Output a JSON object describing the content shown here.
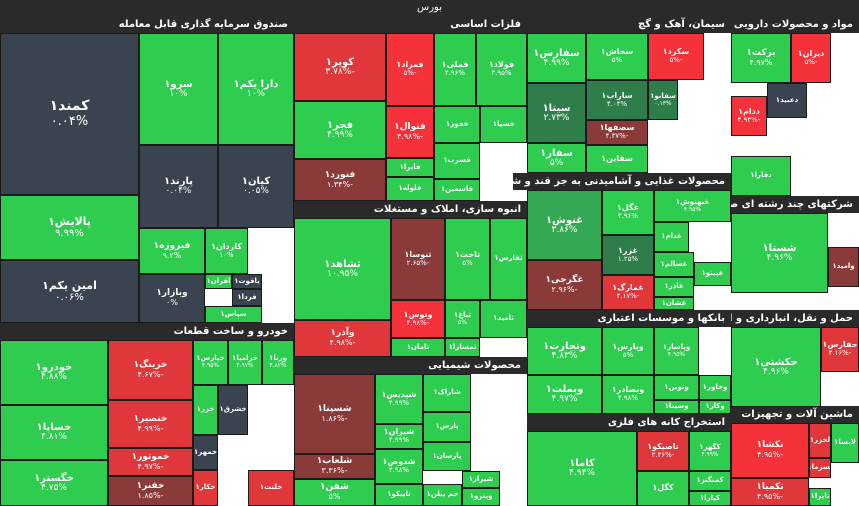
{
  "title": "بورس",
  "colors": {
    "up_strong": "#2ecc4f",
    "up_mid": "#35a853",
    "up_dark": "#2f7d4a",
    "neutral": "#3a4450",
    "down_mid": "#8b3a3a",
    "down_strong": "#e0373b",
    "down_bright": "#f5313a",
    "header": "#2a2a2a"
  },
  "chart_data": {
    "type": "heatmap",
    "title": "بورس",
    "sectors": [
      {
        "name": "صندوق سرمایه گذاری قابل معامله"
      },
      {
        "name": "خودرو و ساخت قطعات"
      },
      {
        "name": "فلزات اساسی"
      },
      {
        "name": "انبوه سازی، املاک و مستغلات"
      },
      {
        "name": "محصولات شیمیایی"
      },
      {
        "name": "سیمان، آهک و گچ"
      },
      {
        "name": "محصولات غذایی و آشامیدنی به جز قند و شکر"
      },
      {
        "name": "بانکها و موسسات اعتباری"
      },
      {
        "name": "استخراج کانه های فلزی"
      },
      {
        "name": "مواد و محصولات دارویی"
      },
      {
        "name": "شرکتهای چند رشته ای صنعتی"
      },
      {
        "name": "حمل و نقل، انبارداری و ارتباطات"
      },
      {
        "name": "ماشین آلات و تجهیزات"
      }
    ],
    "tiles": [
      {
        "symbol": "کمند۱",
        "change": "۰.۰۴%",
        "color": "neutral"
      },
      {
        "symbol": "دارا یکم۱",
        "change": "۱۰%",
        "color": "up_strong"
      },
      {
        "symbol": "سرو۱",
        "change": "۱۰%",
        "color": "up_strong"
      },
      {
        "symbol": "پالایش۱",
        "change": "۹.۹۹%",
        "color": "up_strong"
      },
      {
        "symbol": "کیان۱",
        "change": "۰.۰۵%",
        "color": "neutral"
      },
      {
        "symbol": "پارند۱",
        "change": "۰.۰۴%",
        "color": "neutral"
      },
      {
        "symbol": "امین یکم۱",
        "change": "۰.۰۶%",
        "color": "neutral"
      },
      {
        "symbol": "فیروزه۱",
        "change": "۹.۲%",
        "color": "up_strong"
      },
      {
        "symbol": "کاردان۱",
        "change": "۱۰%",
        "color": "up_strong"
      },
      {
        "symbol": "وبازار۱",
        "change": "۰%",
        "color": "neutral"
      },
      {
        "symbol": "اقران۱",
        "change": "",
        "color": "up_strong"
      },
      {
        "symbol": "یاقوت۱",
        "change": "",
        "color": "neutral"
      },
      {
        "symbol": "فردا۱",
        "change": "",
        "color": "neutral"
      },
      {
        "symbol": "سپاس۱",
        "change": "",
        "color": "up_strong"
      },
      {
        "symbol": "خودرو۱",
        "change": "۴.۸۸%",
        "color": "up_strong"
      },
      {
        "symbol": "خساپا۱",
        "change": "۴.۸۱%",
        "color": "up_strong"
      },
      {
        "symbol": "خگستر۱",
        "change": "۴.۷۵%",
        "color": "up_strong"
      },
      {
        "symbol": "خرینگ۱",
        "change": "-۴.۶۷%",
        "color": "down_strong"
      },
      {
        "symbol": "خنصیر۱",
        "change": "-۴.۹۹%",
        "color": "down_strong"
      },
      {
        "symbol": "خموتور۱",
        "change": "-۴.۹۷%",
        "color": "down_strong"
      },
      {
        "symbol": "خفنر۱",
        "change": "-۱.۸۵%",
        "color": "down_mid"
      },
      {
        "symbol": "خپارس۱",
        "change": "۴.۹۵%",
        "color": "up_strong"
      },
      {
        "symbol": "خزامیا۱",
        "change": "۴.۹۷%",
        "color": "up_strong"
      },
      {
        "symbol": "ورنا۱",
        "change": "۴.۸۲%",
        "color": "up_strong"
      },
      {
        "symbol": "خزر۱",
        "change": "",
        "color": "up_strong"
      },
      {
        "symbol": "خشرق۱",
        "change": "",
        "color": "neutral"
      },
      {
        "symbol": "خمهر۱",
        "change": "",
        "color": "neutral"
      },
      {
        "symbol": "خکار۱",
        "change": "",
        "color": "down_strong"
      },
      {
        "symbol": "خلنت۱",
        "change": "",
        "color": "down_strong"
      },
      {
        "symbol": "کویر۱",
        "change": "-۳.۷۸%",
        "color": "down_strong"
      },
      {
        "symbol": "فمراد۱",
        "change": "-۵%",
        "color": "down_bright"
      },
      {
        "symbol": "فملی۱",
        "change": "۴.۹۶%",
        "color": "up_strong"
      },
      {
        "symbol": "فولاد۱",
        "change": "۴.۹۵%",
        "color": "up_strong"
      },
      {
        "symbol": "فجر۱",
        "change": "۴.۹۹%",
        "color": "up_strong"
      },
      {
        "symbol": "فنوال۱",
        "change": "-۴.۹۸%",
        "color": "down_bright"
      },
      {
        "symbol": "فخوز۱",
        "change": "",
        "color": "up_strong"
      },
      {
        "symbol": "فسپا۱",
        "change": "",
        "color": "up_strong"
      },
      {
        "symbol": "فنورد۱",
        "change": "-۱.۳۴%",
        "color": "down_mid"
      },
      {
        "symbol": "فایرا۱",
        "change": "",
        "color": "up_strong"
      },
      {
        "symbol": "فسرب۱",
        "change": "",
        "color": "up_strong"
      },
      {
        "symbol": "فلوله۱",
        "change": "",
        "color": "up_strong"
      },
      {
        "symbol": "فاسمین۱",
        "change": "",
        "color": "up_strong"
      },
      {
        "symbol": "ثشاهد۱",
        "change": "۱۰.۹۵%",
        "color": "up_strong"
      },
      {
        "symbol": "ثنوسا۱",
        "change": "-۲.۶۵%",
        "color": "down_mid"
      },
      {
        "symbol": "ثاخت۱",
        "change": "۵%",
        "color": "up_strong"
      },
      {
        "symbol": "ثفارس۱",
        "change": "",
        "color": "up_strong"
      },
      {
        "symbol": "وآذر۱",
        "change": "-۴.۹۸%",
        "color": "down_strong"
      },
      {
        "symbol": "وتوس۱",
        "change": "-۴.۹۸%",
        "color": "down_bright"
      },
      {
        "symbol": "ثباغ۱",
        "change": "۵%",
        "color": "up_strong"
      },
      {
        "symbol": "ثامید۱",
        "change": "",
        "color": "up_strong"
      },
      {
        "symbol": "ثمسازا۱",
        "change": "",
        "color": "up_strong"
      },
      {
        "symbol": "ثامان۱",
        "change": "",
        "color": "up_strong"
      },
      {
        "symbol": "شسپنا۱",
        "change": "-۱.۸۶%",
        "color": "down_mid"
      },
      {
        "symbol": "شپدیس۱",
        "change": "۴.۹۹%",
        "color": "up_strong"
      },
      {
        "symbol": "شیران۱",
        "change": "۴.۹۹%",
        "color": "up_strong"
      },
      {
        "symbol": "شاراک۱",
        "change": "",
        "color": "up_strong"
      },
      {
        "symbol": "شلعاب۱",
        "change": "-۳.۳۶%",
        "color": "down_mid"
      },
      {
        "symbol": "شدوص۱",
        "change": "۴.۹۸%",
        "color": "up_strong"
      },
      {
        "symbol": "پارس۱",
        "change": "",
        "color": "up_strong"
      },
      {
        "symbol": "شفن۱",
        "change": "۵%",
        "color": "up_strong"
      },
      {
        "symbol": "تاپیکو۱",
        "change": "",
        "color": "up_strong"
      },
      {
        "symbol": "پارسان۱",
        "change": "",
        "color": "up_strong"
      },
      {
        "symbol": "شیراز۱",
        "change": "",
        "color": "up_strong"
      },
      {
        "symbol": "جم پیلن۱",
        "change": "",
        "color": "up_strong"
      },
      {
        "symbol": "وپترو۱",
        "change": "",
        "color": "up_strong"
      },
      {
        "symbol": "سفارس۱",
        "change": "۴.۹۹%",
        "color": "up_strong"
      },
      {
        "symbol": "سخاش۱",
        "change": "۵%",
        "color": "up_strong"
      },
      {
        "symbol": "سکرد۱",
        "change": "-۵%",
        "color": "down_bright"
      },
      {
        "symbol": "سیتا۱",
        "change": "۲.۷۳%",
        "color": "up_dark"
      },
      {
        "symbol": "ساراب۱",
        "change": "۴.۰۴%",
        "color": "up_dark"
      },
      {
        "symbol": "سفانو۱",
        "change": "۰.۱۳%",
        "color": "up_dark"
      },
      {
        "symbol": "سصفها۱",
        "change": "-۴.۳۷%",
        "color": "down_mid"
      },
      {
        "symbol": "سفار۱",
        "change": "۵%",
        "color": "up_strong"
      },
      {
        "symbol": "سفاین۱",
        "change": "",
        "color": "up_strong"
      },
      {
        "symbol": "غنوش۱",
        "change": "۳.۸۶%",
        "color": "up_mid"
      },
      {
        "symbol": "غگل۱",
        "change": "۴.۹۶%",
        "color": "up_strong"
      },
      {
        "symbol": "غبهنوش۱",
        "change": "۴.۹۵%",
        "color": "up_strong"
      },
      {
        "symbol": "غدام۱",
        "change": "",
        "color": "up_strong"
      },
      {
        "symbol": "غزر۱",
        "change": "۱.۲۵%",
        "color": "up_dark"
      },
      {
        "symbol": "غسالم۱",
        "change": "",
        "color": "up_strong"
      },
      {
        "symbol": "غگرجی۱",
        "change": "-۲.۹۶%",
        "color": "down_mid"
      },
      {
        "symbol": "غمارگ۱",
        "change": "-۴.۱۷%",
        "color": "down_strong"
      },
      {
        "symbol": "غاذر۱",
        "change": "",
        "color": "up_strong"
      },
      {
        "symbol": "غپینو۱",
        "change": "",
        "color": "up_strong"
      },
      {
        "symbol": "غشان۱",
        "change": "",
        "color": "up_strong"
      },
      {
        "symbol": "وتجارت۱",
        "change": "۴.۸۳%",
        "color": "up_strong"
      },
      {
        "symbol": "وپارس۱",
        "change": "۵%",
        "color": "up_strong"
      },
      {
        "symbol": "وپاسار۱",
        "change": "۴.۹۵%",
        "color": "up_strong"
      },
      {
        "symbol": "وبملت۱",
        "change": "۴.۹۷%",
        "color": "up_strong"
      },
      {
        "symbol": "وبصادر۱",
        "change": "۴.۹۸%",
        "color": "up_strong"
      },
      {
        "symbol": "ونوین۱",
        "change": "",
        "color": "up_strong"
      },
      {
        "symbol": "وخاور۱",
        "change": "",
        "color": "up_strong"
      },
      {
        "symbol": "وسینا۱",
        "change": "",
        "color": "up_strong"
      },
      {
        "symbol": "وکار۱",
        "change": "",
        "color": "up_strong"
      },
      {
        "symbol": "کاما۱",
        "change": "۴.۹۴%",
        "color": "up_strong"
      },
      {
        "symbol": "تاصیکو۱",
        "change": "-۳.۴۶%",
        "color": "down_strong"
      },
      {
        "symbol": "کگهر۱",
        "change": "۴.۹۹%",
        "color": "up_strong"
      },
      {
        "symbol": "کگل۱",
        "change": "",
        "color": "up_strong"
      },
      {
        "symbol": "کمنگنز۱",
        "change": "",
        "color": "up_strong"
      },
      {
        "symbol": "کپارا۱",
        "change": "",
        "color": "up_strong"
      },
      {
        "symbol": "برکت۱",
        "change": "۴.۹۷%",
        "color": "up_strong"
      },
      {
        "symbol": "دیران۱",
        "change": "-۵%",
        "color": "down_bright"
      },
      {
        "symbol": "دعبید۱",
        "change": "",
        "color": "neutral"
      },
      {
        "symbol": "ددام۱",
        "change": "-۴.۹۴%",
        "color": "down_bright"
      },
      {
        "symbol": "دفارا۱",
        "change": "",
        "color": "up_strong"
      },
      {
        "symbol": "شستا۱",
        "change": "۴.۹۶%",
        "color": "up_strong"
      },
      {
        "symbol": "وامید۱",
        "change": "",
        "color": "down_mid"
      },
      {
        "symbol": "حکشتی۱",
        "change": "۴.۹۶%",
        "color": "up_strong"
      },
      {
        "symbol": "حفارس۱",
        "change": "-۴.۱۶%",
        "color": "down_strong"
      },
      {
        "symbol": "تکشا۱",
        "change": "-۴.۹۵%",
        "color": "down_bright"
      },
      {
        "symbol": "تکمبا۱",
        "change": "-۴.۹۵%",
        "color": "down_strong"
      },
      {
        "symbol": "تاپرا۱",
        "change": "",
        "color": "up_strong"
      },
      {
        "symbol": "لسرما۱",
        "change": "",
        "color": "down_strong"
      },
      {
        "symbol": "لخزر۱",
        "change": "",
        "color": "down_strong"
      },
      {
        "symbol": "لابسا۱",
        "change": "",
        "color": "up_strong"
      }
    ]
  }
}
